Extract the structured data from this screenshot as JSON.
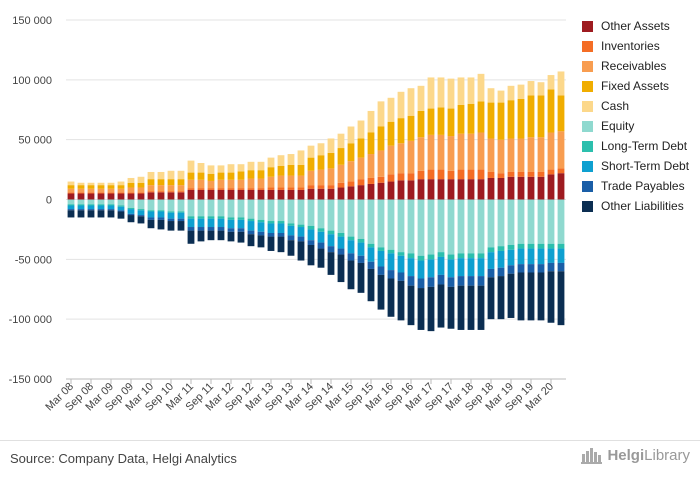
{
  "chart_data": {
    "type": "bar",
    "stacked": true,
    "categories": [
      "Mar 08",
      "Jun 08",
      "Sep 08",
      "Dec 08",
      "Mar 09",
      "Jun 09",
      "Sep 09",
      "Dec 09",
      "Mar 10",
      "Jun 10",
      "Sep 10",
      "Dec 10",
      "Mar 11",
      "Jun 11",
      "Sep 11",
      "Dec 11",
      "Mar 12",
      "Jun 12",
      "Sep 12",
      "Dec 12",
      "Mar 13",
      "Jun 13",
      "Sep 13",
      "Dec 13",
      "Mar 14",
      "Jun 14",
      "Sep 14",
      "Dec 14",
      "Mar 15",
      "Jun 15",
      "Sep 15",
      "Dec 15",
      "Mar 16",
      "Jun 16",
      "Sep 16",
      "Dec 16",
      "Mar 17",
      "Jun 17",
      "Sep 17",
      "Dec 17",
      "Mar 18",
      "Jun 18",
      "Sep 18",
      "Dec 18",
      "Mar 19",
      "Jun 19",
      "Sep 19",
      "Dec 19",
      "Mar 20",
      "Jun 20"
    ],
    "tick_labels": [
      "Mar 08",
      "Sep 08",
      "Mar 09",
      "Sep 09",
      "Mar 10",
      "Sep 10",
      "Mar 11",
      "Sep 11",
      "Mar 12",
      "Sep 12",
      "Mar 13",
      "Sep 13",
      "Mar 14",
      "Sep 14",
      "Mar 15",
      "Sep 15",
      "Mar 16",
      "Sep 16",
      "Mar 17",
      "Sep 17",
      "Mar 18",
      "Sep 18",
      "Mar 19",
      "Sep 19",
      "Mar 20"
    ],
    "y_ticks": [
      150000,
      100000,
      50000,
      0,
      -50000,
      -100000,
      -150000
    ],
    "y_tick_labels": [
      "150 000",
      "100 000",
      "50 000",
      "0",
      "-50 000",
      "-100 000",
      "-150 000"
    ],
    "ylim": [
      -150000,
      150000
    ],
    "grid": true,
    "legend_position": "right",
    "series": [
      {
        "name": "Other Assets",
        "color": "#9e1b20",
        "group": "assets",
        "values": [
          5000,
          5000,
          5000,
          5000,
          5000,
          5000,
          5000,
          5000,
          6000,
          6000,
          6000,
          6000,
          8000,
          8000,
          8000,
          8000,
          8000,
          8000,
          8000,
          8000,
          8000,
          8000,
          8000,
          8000,
          9000,
          9000,
          9000,
          10000,
          11000,
          12000,
          13000,
          14000,
          15000,
          16000,
          16000,
          17000,
          17000,
          17000,
          17000,
          17000,
          17000,
          17000,
          18000,
          18000,
          19000,
          19000,
          19000,
          19000,
          21000,
          22000
        ]
      },
      {
        "name": "Inventories",
        "color": "#f46d25",
        "group": "assets",
        "values": [
          1000,
          1000,
          1000,
          1000,
          1000,
          1000,
          1000,
          1000,
          1000,
          1000,
          1000,
          1000,
          1500,
          1500,
          1500,
          1500,
          1500,
          1500,
          1500,
          1500,
          2000,
          2000,
          2000,
          2000,
          3000,
          3000,
          3000,
          4000,
          4000,
          5000,
          5000,
          5000,
          6000,
          6000,
          6000,
          7000,
          8000,
          8000,
          7000,
          8000,
          8000,
          8000,
          5000,
          4000,
          4000,
          4000,
          4000,
          4000,
          4000,
          4000
        ]
      },
      {
        "name": "Receivables",
        "color": "#f89d50",
        "group": "assets",
        "values": [
          3000,
          3000,
          3000,
          3000,
          3000,
          3000,
          4000,
          4000,
          5000,
          5000,
          5000,
          5000,
          7000,
          7000,
          6000,
          7000,
          7000,
          7000,
          8000,
          8000,
          9000,
          10000,
          10000,
          10000,
          12000,
          13000,
          14000,
          15000,
          17000,
          18000,
          20000,
          22000,
          24000,
          25000,
          27000,
          28000,
          29000,
          29000,
          29000,
          30000,
          30000,
          31000,
          28000,
          28000,
          28000,
          28000,
          29000,
          29000,
          31000,
          31000
        ]
      },
      {
        "name": "Fixed Assets",
        "color": "#f0ad00",
        "group": "assets",
        "values": [
          3000,
          3000,
          3000,
          3000,
          3000,
          3000,
          4000,
          4000,
          5000,
          5000,
          5000,
          5000,
          6000,
          6000,
          6000,
          6000,
          6000,
          7000,
          7000,
          7000,
          8000,
          8000,
          9000,
          9000,
          11000,
          12000,
          13000,
          14000,
          15000,
          16000,
          18000,
          20000,
          20000,
          21000,
          21000,
          22000,
          22000,
          23000,
          23000,
          24000,
          25000,
          26000,
          30000,
          31000,
          32000,
          33000,
          35000,
          35000,
          36000,
          30000
        ]
      },
      {
        "name": "Cash",
        "color": "#fcd88b",
        "group": "assets",
        "values": [
          3000,
          2000,
          2000,
          2000,
          2000,
          3000,
          4000,
          5000,
          6000,
          6000,
          7000,
          7000,
          10000,
          8000,
          7000,
          6000,
          7000,
          6000,
          7000,
          7000,
          8000,
          9000,
          9000,
          12000,
          10000,
          10000,
          12000,
          12000,
          14000,
          15000,
          18000,
          21000,
          20000,
          22000,
          23000,
          21000,
          26000,
          25000,
          25000,
          23000,
          22000,
          23000,
          12000,
          10000,
          12000,
          12000,
          12000,
          11000,
          12000,
          20000
        ]
      },
      {
        "name": "Equity",
        "color": "#8fd9cf",
        "group": "liabilities",
        "values": [
          -4000,
          -4000,
          -4000,
          -4000,
          -4000,
          -5000,
          -7000,
          -8000,
          -9000,
          -9000,
          -10000,
          -10000,
          -14000,
          -14000,
          -14000,
          -14000,
          -15000,
          -15000,
          -16000,
          -17000,
          -18000,
          -18000,
          -20000,
          -21000,
          -22000,
          -24000,
          -26000,
          -28000,
          -31000,
          -33000,
          -37000,
          -40000,
          -42000,
          -44000,
          -45000,
          -47000,
          -46000,
          -44000,
          -46000,
          -45000,
          -45000,
          -45000,
          -40000,
          -39000,
          -38000,
          -37000,
          -37000,
          -37000,
          -37000,
          -37000
        ]
      },
      {
        "name": "Long-Term Debt",
        "color": "#2cbfad",
        "group": "liabilities",
        "values": [
          -1000,
          -1000,
          -1000,
          -1000,
          -1000,
          -1000,
          -1000,
          -1000,
          -1000,
          -1000,
          -1000,
          -1000,
          -2000,
          -2000,
          -2000,
          -2000,
          -2000,
          -2000,
          -2000,
          -2000,
          -2000,
          -2000,
          -2000,
          -2000,
          -3000,
          -3000,
          -3000,
          -3000,
          -3000,
          -3000,
          -3000,
          -3000,
          -3000,
          -3000,
          -4000,
          -4000,
          -4000,
          -4000,
          -4000,
          -4000,
          -4000,
          -4000,
          -4000,
          -4000,
          -4000,
          -4000,
          -4000,
          -4000,
          -4000,
          -4000
        ]
      },
      {
        "name": "Short-Term Debt",
        "color": "#0ea0d0",
        "group": "liabilities",
        "values": [
          -3000,
          -3000,
          -3000,
          -3000,
          -3000,
          -3000,
          -4000,
          -4000,
          -5000,
          -5000,
          -5000,
          -5000,
          -7000,
          -7000,
          -7000,
          -7000,
          -7000,
          -7000,
          -8000,
          -8000,
          -8000,
          -8000,
          -8000,
          -8000,
          -9000,
          -9000,
          -10000,
          -10000,
          -11000,
          -11000,
          -12000,
          -13000,
          -14000,
          -14000,
          -15000,
          -15000,
          -15000,
          -15000,
          -15000,
          -15000,
          -15000,
          -15000,
          -14000,
          -14000,
          -13000,
          -13000,
          -13000,
          -13000,
          -12000,
          -12000
        ]
      },
      {
        "name": "Trade Payables",
        "color": "#1a5ea7",
        "group": "liabilities",
        "values": [
          -1000,
          -1000,
          -1000,
          -1000,
          -1000,
          -1000,
          -1000,
          -1000,
          -2000,
          -2000,
          -2000,
          -2000,
          -3000,
          -3000,
          -3000,
          -3000,
          -3000,
          -3000,
          -3000,
          -3000,
          -3000,
          -3000,
          -4000,
          -4000,
          -4000,
          -5000,
          -5000,
          -5000,
          -6000,
          -6000,
          -6000,
          -7000,
          -7000,
          -7000,
          -8000,
          -8000,
          -8000,
          -8000,
          -8000,
          -8000,
          -8000,
          -8000,
          -7000,
          -7000,
          -7000,
          -7000,
          -7000,
          -7000,
          -7000,
          -7000
        ]
      },
      {
        "name": "Other Liabilities",
        "color": "#0b2e52",
        "group": "liabilities",
        "values": [
          -6000,
          -6000,
          -6000,
          -6000,
          -6000,
          -6000,
          -6000,
          -6000,
          -7000,
          -8000,
          -8000,
          -8000,
          -11000,
          -9000,
          -8000,
          -8000,
          -8000,
          -9000,
          -10000,
          -10000,
          -12000,
          -13000,
          -13000,
          -16000,
          -17000,
          -16000,
          -19000,
          -23000,
          -24000,
          -25000,
          -27000,
          -29000,
          -32000,
          -33000,
          -33000,
          -35000,
          -37000,
          -36000,
          -35000,
          -37000,
          -37000,
          -37000,
          -35000,
          -36000,
          -37000,
          -40000,
          -40000,
          -40000,
          -43000,
          -45000
        ]
      }
    ]
  },
  "legend": {
    "items": [
      {
        "name": "Other Assets",
        "color": "#9e1b20"
      },
      {
        "name": "Inventories",
        "color": "#f46d25"
      },
      {
        "name": "Receivables",
        "color": "#f89d50"
      },
      {
        "name": "Fixed Assets",
        "color": "#f0ad00"
      },
      {
        "name": "Cash",
        "color": "#fcd88b"
      },
      {
        "name": "Equity",
        "color": "#8fd9cf"
      },
      {
        "name": "Long-Term Debt",
        "color": "#2cbfad"
      },
      {
        "name": "Short-Term Debt",
        "color": "#0ea0d0"
      },
      {
        "name": "Trade Payables",
        "color": "#1a5ea7"
      },
      {
        "name": "Other Liabilities",
        "color": "#0b2e52"
      }
    ]
  },
  "footer": {
    "source": "Source: Company Data, Helgi Analytics",
    "logo_bold": "Helgi",
    "logo_light": "Library"
  }
}
